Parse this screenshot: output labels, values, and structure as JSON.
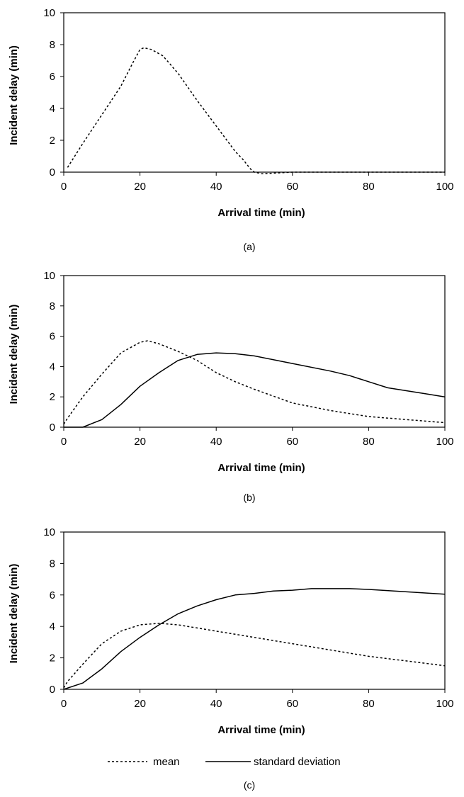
{
  "legend": {
    "mean_label": "mean",
    "sd_label": "standard deviation"
  },
  "chart_data": [
    {
      "type": "line",
      "caption": "(a)",
      "xlabel": "Arrival time (min)",
      "ylabel": "Incident delay (min)",
      "xlim": [
        0,
        100
      ],
      "ylim": [
        0,
        10
      ],
      "xticks": [
        0,
        20,
        40,
        60,
        80,
        100
      ],
      "yticks": [
        0,
        2,
        4,
        6,
        8,
        10
      ],
      "grid": false,
      "series": [
        {
          "style": "dotted",
          "points": [
            [
              1,
              0.3
            ],
            [
              5,
              1.8
            ],
            [
              10,
              3.6
            ],
            [
              15,
              5.4
            ],
            [
              18,
              6.8
            ],
            [
              20,
              7.7
            ],
            [
              21,
              7.8
            ],
            [
              23,
              7.7
            ],
            [
              26,
              7.3
            ],
            [
              30,
              6.2
            ],
            [
              35,
              4.5
            ],
            [
              40,
              2.9
            ],
            [
              45,
              1.3
            ],
            [
              47,
              0.8
            ],
            [
              49,
              0.2
            ],
            [
              50,
              0.0
            ],
            [
              52,
              -0.1
            ],
            [
              60,
              0.0
            ],
            [
              70,
              0.0
            ],
            [
              80,
              0.0
            ],
            [
              90,
              0.0
            ],
            [
              100,
              0.0
            ]
          ]
        }
      ]
    },
    {
      "type": "line",
      "caption": "(b)",
      "xlabel": "Arrival time (min)",
      "ylabel": "Incident delay (min)",
      "xlim": [
        0,
        100
      ],
      "ylim": [
        0,
        10
      ],
      "xticks": [
        0,
        20,
        40,
        60,
        80,
        100
      ],
      "yticks": [
        0,
        2,
        4,
        6,
        8,
        10
      ],
      "grid": false,
      "series": [
        {
          "name": "mean",
          "style": "dotted",
          "points": [
            [
              0,
              0.2
            ],
            [
              1,
              0.6
            ],
            [
              5,
              2.0
            ],
            [
              10,
              3.5
            ],
            [
              15,
              4.9
            ],
            [
              20,
              5.6
            ],
            [
              22,
              5.7
            ],
            [
              25,
              5.5
            ],
            [
              30,
              5.0
            ],
            [
              35,
              4.4
            ],
            [
              40,
              3.6
            ],
            [
              45,
              3.0
            ],
            [
              50,
              2.5
            ],
            [
              60,
              1.6
            ],
            [
              70,
              1.1
            ],
            [
              80,
              0.7
            ],
            [
              90,
              0.5
            ],
            [
              100,
              0.3
            ]
          ]
        },
        {
          "name": "standard deviation",
          "style": "solid",
          "points": [
            [
              0,
              0.0
            ],
            [
              5,
              0.0
            ],
            [
              10,
              0.5
            ],
            [
              15,
              1.5
            ],
            [
              20,
              2.7
            ],
            [
              25,
              3.6
            ],
            [
              30,
              4.4
            ],
            [
              35,
              4.8
            ],
            [
              40,
              4.9
            ],
            [
              45,
              4.85
            ],
            [
              50,
              4.7
            ],
            [
              60,
              4.2
            ],
            [
              70,
              3.7
            ],
            [
              75,
              3.4
            ],
            [
              80,
              3.0
            ],
            [
              85,
              2.6
            ],
            [
              90,
              2.4
            ],
            [
              95,
              2.2
            ],
            [
              100,
              2.0
            ]
          ]
        }
      ]
    },
    {
      "type": "line",
      "caption": "(c)",
      "xlabel": "Arrival time (min)",
      "ylabel": "Incident delay (min)",
      "xlim": [
        0,
        100
      ],
      "ylim": [
        0,
        10
      ],
      "xticks": [
        0,
        20,
        40,
        60,
        80,
        100
      ],
      "yticks": [
        0,
        2,
        4,
        6,
        8,
        10
      ],
      "grid": false,
      "series": [
        {
          "name": "mean",
          "style": "dotted",
          "points": [
            [
              0,
              0.1
            ],
            [
              1,
              0.5
            ],
            [
              5,
              1.6
            ],
            [
              10,
              2.9
            ],
            [
              15,
              3.7
            ],
            [
              20,
              4.1
            ],
            [
              25,
              4.2
            ],
            [
              30,
              4.1
            ],
            [
              35,
              3.9
            ],
            [
              40,
              3.7
            ],
            [
              45,
              3.5
            ],
            [
              50,
              3.3
            ],
            [
              60,
              2.9
            ],
            [
              70,
              2.5
            ],
            [
              80,
              2.1
            ],
            [
              90,
              1.8
            ],
            [
              100,
              1.5
            ]
          ]
        },
        {
          "name": "standard deviation",
          "style": "solid",
          "points": [
            [
              0,
              0.0
            ],
            [
              5,
              0.4
            ],
            [
              10,
              1.3
            ],
            [
              15,
              2.4
            ],
            [
              20,
              3.3
            ],
            [
              25,
              4.1
            ],
            [
              30,
              4.8
            ],
            [
              35,
              5.3
            ],
            [
              40,
              5.7
            ],
            [
              45,
              6.0
            ],
            [
              50,
              6.1
            ],
            [
              55,
              6.25
            ],
            [
              60,
              6.3
            ],
            [
              65,
              6.4
            ],
            [
              70,
              6.4
            ],
            [
              75,
              6.4
            ],
            [
              80,
              6.35
            ],
            [
              90,
              6.2
            ],
            [
              100,
              6.05
            ]
          ]
        }
      ]
    }
  ]
}
